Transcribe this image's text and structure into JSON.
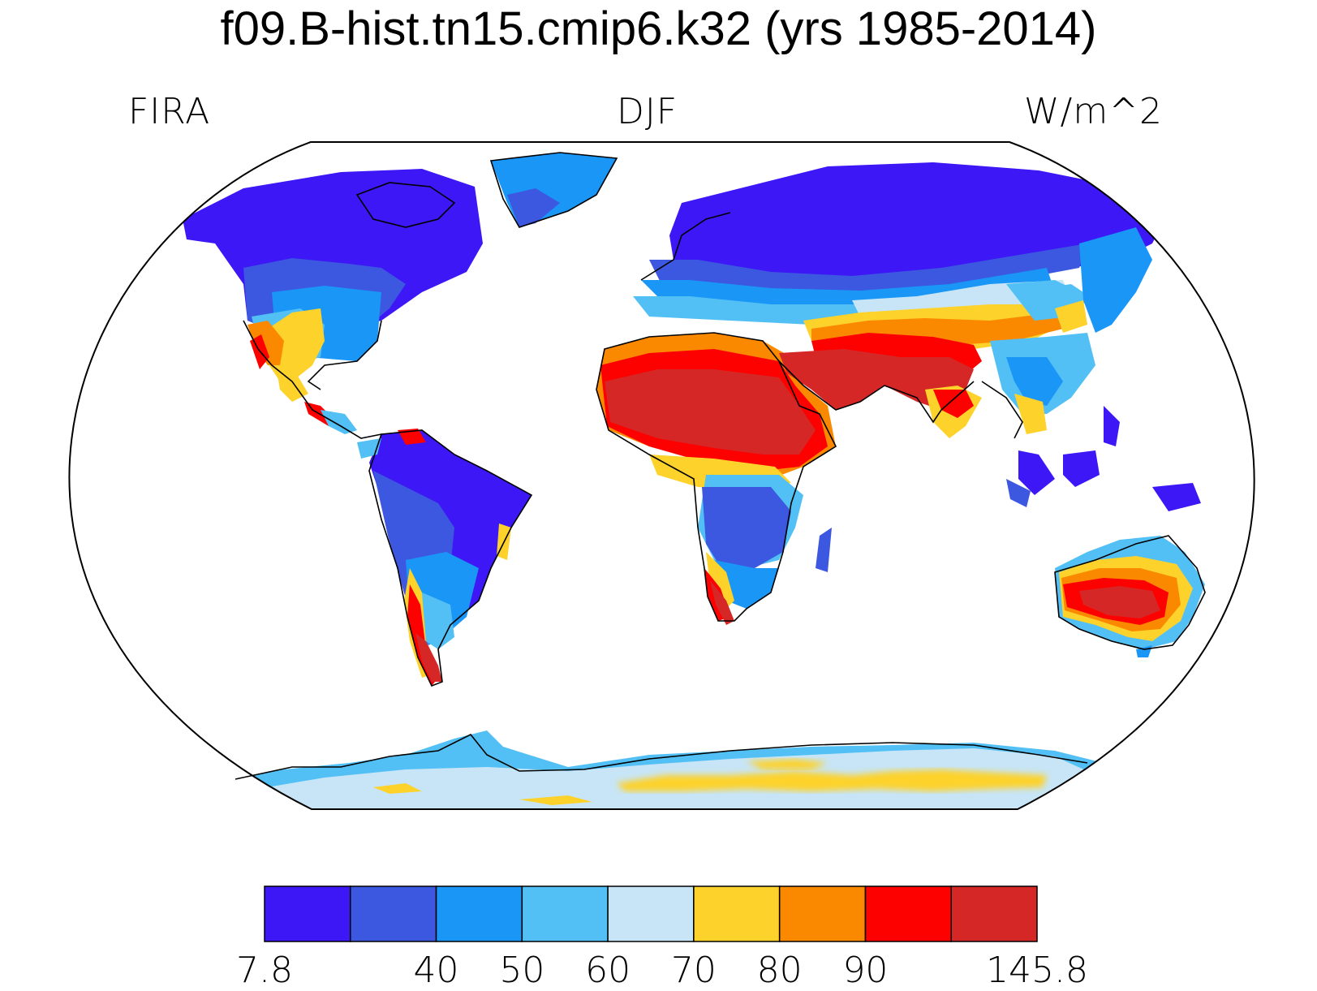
{
  "title": "f09.B-hist.tn15.cmip6.k32 (yrs 1985-2014)",
  "left_label": "FIRA",
  "center_label": "DJF",
  "right_label": "W/m^2",
  "colorbar": {
    "colors": [
      "#3d17f5",
      "#3c57e0",
      "#1a96f7",
      "#52c0f5",
      "#c7e5f7",
      "#fdd22a",
      "#fb8900",
      "#fd0000",
      "#d62727"
    ],
    "labels": [
      "7.8",
      "",
      "40",
      "50",
      "60",
      "70",
      "80",
      "90",
      "",
      "145.8"
    ]
  }
}
